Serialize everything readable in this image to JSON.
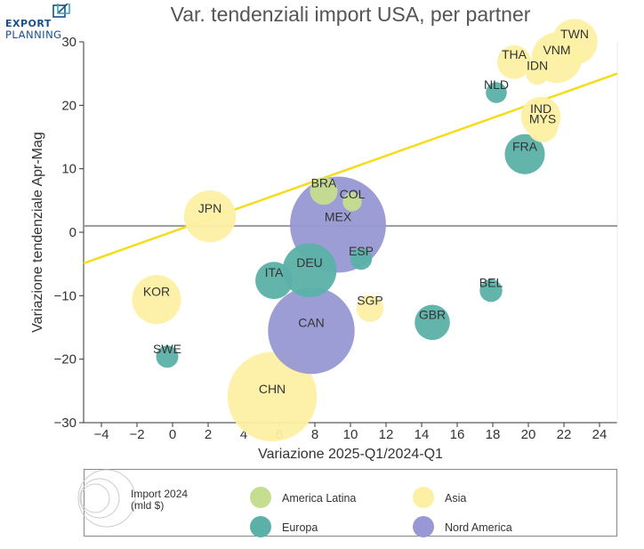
{
  "logo": {
    "line1": "EXPORT",
    "line2": "PLANNING"
  },
  "chart_data": {
    "type": "scatter",
    "title": "Var. tendenziali import USA, per partner",
    "xlabel": "Variazione 2025-Q1/2024-Q1",
    "ylabel": "Variazione tendenziale Apr-Mag",
    "xlim": [
      -5,
      25
    ],
    "ylim": [
      -30,
      30
    ],
    "xticks": [
      -4,
      -2,
      0,
      2,
      4,
      6,
      8,
      10,
      12,
      14,
      16,
      18,
      20,
      22,
      24
    ],
    "yticks": [
      -30,
      -20,
      -10,
      0,
      10,
      20,
      30
    ],
    "hline_y": 1,
    "trendline": {
      "x0": -5,
      "y0": -4.9,
      "x1": 25,
      "y1": 25
    },
    "size_legend_label": "Import 2024\n(mld $)",
    "groups": [
      {
        "name": "America Latina",
        "color": "#c5dd8f"
      },
      {
        "name": "Asia",
        "color": "#fdf0a4"
      },
      {
        "name": "Europa",
        "color": "#5bb1a8"
      },
      {
        "name": "Nord America",
        "color": "#9898d4"
      }
    ],
    "points": [
      {
        "label": "TWN",
        "x": 22.6,
        "y": 30.0,
        "size": 115,
        "group": "Asia"
      },
      {
        "label": "VNM",
        "x": 21.6,
        "y": 27.5,
        "size": 140,
        "group": "Asia"
      },
      {
        "label": "THA",
        "x": 19.2,
        "y": 26.8,
        "size": 63,
        "group": "Asia"
      },
      {
        "label": "IDN",
        "x": 20.5,
        "y": 25.0,
        "size": 28,
        "group": "Asia"
      },
      {
        "label": "NLD",
        "x": 18.2,
        "y": 22.0,
        "size": 24,
        "group": "Europa"
      },
      {
        "label": "IND",
        "x": 20.7,
        "y": 18.2,
        "size": 87,
        "group": "Asia"
      },
      {
        "label": "MYS",
        "x": 20.8,
        "y": 16.6,
        "size": 52,
        "group": "Asia"
      },
      {
        "label": "FRA",
        "x": 19.8,
        "y": 12.3,
        "size": 88,
        "group": "Europa"
      },
      {
        "label": "BRA",
        "x": 8.5,
        "y": 6.5,
        "size": 42,
        "group": "America Latina"
      },
      {
        "label": "COL",
        "x": 10.1,
        "y": 4.8,
        "size": 20,
        "group": "America Latina"
      },
      {
        "label": "JPN",
        "x": 2.1,
        "y": 2.5,
        "size": 148,
        "group": "Asia"
      },
      {
        "label": "MEX",
        "x": 9.3,
        "y": 1.2,
        "size": 505,
        "group": "Nord America"
      },
      {
        "label": "ESP",
        "x": 10.6,
        "y": -4.2,
        "size": 26,
        "group": "Europa"
      },
      {
        "label": "DEU",
        "x": 7.7,
        "y": -6.0,
        "size": 160,
        "group": "Europa"
      },
      {
        "label": "ITA",
        "x": 5.7,
        "y": -7.6,
        "size": 76,
        "group": "Europa"
      },
      {
        "label": "BEL",
        "x": 17.9,
        "y": -9.2,
        "size": 28,
        "group": "Europa"
      },
      {
        "label": "KOR",
        "x": -0.9,
        "y": -10.6,
        "size": 132,
        "group": "Asia"
      },
      {
        "label": "SGP",
        "x": 11.1,
        "y": -12.0,
        "size": 40,
        "group": "Asia"
      },
      {
        "label": "GBR",
        "x": 14.6,
        "y": -14.2,
        "size": 68,
        "group": "Europa"
      },
      {
        "label": "CAN",
        "x": 7.8,
        "y": -15.5,
        "size": 412,
        "group": "Nord America"
      },
      {
        "label": "SWE",
        "x": -0.3,
        "y": -19.6,
        "size": 27,
        "group": "Europa"
      },
      {
        "label": "CHN",
        "x": 5.6,
        "y": -25.9,
        "size": 439,
        "group": "Asia"
      }
    ]
  }
}
